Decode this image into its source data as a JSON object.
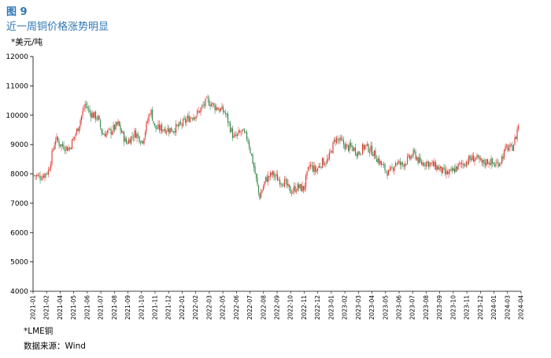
{
  "figure": {
    "label": "图 9",
    "title": "近一周铜价格涨势明显",
    "unit": "*美元/吨",
    "series_note": "*LME铜",
    "source": "数据来源：Wind"
  },
  "colors": {
    "up": "#E0413A",
    "down": "#3B8A4F",
    "axis": "#000000",
    "title": "#2E75B6"
  },
  "chart_data": {
    "type": "line",
    "style": "candlestick",
    "ylim": [
      4000,
      12000
    ],
    "yticks": [
      4000,
      5000,
      6000,
      7000,
      8000,
      9000,
      10000,
      11000,
      12000
    ],
    "grid": false,
    "x_tick_labels": [
      "2021-01",
      "2021-02",
      "2021-04",
      "2021-05",
      "2021-06",
      "2021-07",
      "2021-08",
      "2021-09",
      "2021-10",
      "2021-11",
      "2021-12",
      "2022-01",
      "2022-02",
      "2022-03",
      "2022-05",
      "2022-06",
      "2022-07",
      "2022-08",
      "2022-09",
      "2022-10",
      "2022-11",
      "2022-12",
      "2023-01",
      "2023-02",
      "2023-03",
      "2023-04",
      "2023-05",
      "2023-06",
      "2023-07",
      "2023-08",
      "2023-09",
      "2023-10",
      "2023-11",
      "2023-12",
      "2024-01",
      "2024-03",
      "2024-04"
    ],
    "points": [
      [
        "2021-01-04",
        7950
      ],
      [
        "2021-01-20",
        7900
      ],
      [
        "2021-02-08",
        8100
      ],
      [
        "2021-02-25",
        9200
      ],
      [
        "2021-03-10",
        9000
      ],
      [
        "2021-03-31",
        8850
      ],
      [
        "2021-04-20",
        9500
      ],
      [
        "2021-05-10",
        10400
      ],
      [
        "2021-05-20",
        10100
      ],
      [
        "2021-06-10",
        9900
      ],
      [
        "2021-06-21",
        9350
      ],
      [
        "2021-07-12",
        9450
      ],
      [
        "2021-07-30",
        9700
      ],
      [
        "2021-08-19",
        9050
      ],
      [
        "2021-09-10",
        9400
      ],
      [
        "2021-09-28",
        9100
      ],
      [
        "2021-10-18",
        10200
      ],
      [
        "2021-10-29",
        9550
      ],
      [
        "2021-11-19",
        9550
      ],
      [
        "2021-12-10",
        9500
      ],
      [
        "2021-12-31",
        9650
      ],
      [
        "2022-01-20",
        9900
      ],
      [
        "2022-02-10",
        10050
      ],
      [
        "2022-03-07",
        10500
      ],
      [
        "2022-03-25",
        10300
      ],
      [
        "2022-04-20",
        10100
      ],
      [
        "2022-05-12",
        9200
      ],
      [
        "2022-05-31",
        9450
      ],
      [
        "2022-06-15",
        9200
      ],
      [
        "2022-06-30",
        8250
      ],
      [
        "2022-07-14",
        7200
      ],
      [
        "2022-07-29",
        7800
      ],
      [
        "2022-08-15",
        8000
      ],
      [
        "2022-08-31",
        7800
      ],
      [
        "2022-09-15",
        7700
      ],
      [
        "2022-09-28",
        7400
      ],
      [
        "2022-10-15",
        7550
      ],
      [
        "2022-10-31",
        7500
      ],
      [
        "2022-11-15",
        8300
      ],
      [
        "2022-11-30",
        8100
      ],
      [
        "2022-12-15",
        8400
      ],
      [
        "2022-12-30",
        8450
      ],
      [
        "2023-01-17",
        9200
      ],
      [
        "2023-01-31",
        9100
      ],
      [
        "2023-02-15",
        8900
      ],
      [
        "2023-02-28",
        8900
      ],
      [
        "2023-03-15",
        8700
      ],
      [
        "2023-03-31",
        8950
      ],
      [
        "2023-04-17",
        8800
      ],
      [
        "2023-05-02",
        8500
      ],
      [
        "2023-05-17",
        8200
      ],
      [
        "2023-05-31",
        8000
      ],
      [
        "2023-06-15",
        8400
      ],
      [
        "2023-06-30",
        8300
      ],
      [
        "2023-07-17",
        8500
      ],
      [
        "2023-07-31",
        8700
      ],
      [
        "2023-08-15",
        8350
      ],
      [
        "2023-08-31",
        8400
      ],
      [
        "2023-09-15",
        8300
      ],
      [
        "2023-09-29",
        8200
      ],
      [
        "2023-10-16",
        8000
      ],
      [
        "2023-10-31",
        8050
      ],
      [
        "2023-11-15",
        8250
      ],
      [
        "2023-11-30",
        8350
      ],
      [
        "2023-12-15",
        8500
      ],
      [
        "2023-12-29",
        8550
      ],
      [
        "2024-01-15",
        8350
      ],
      [
        "2024-01-31",
        8450
      ],
      [
        "2024-02-15",
        8300
      ],
      [
        "2024-02-29",
        8450
      ],
      [
        "2024-03-15",
        8900
      ],
      [
        "2024-03-28",
        8850
      ],
      [
        "2024-04-08",
        9300
      ],
      [
        "2024-04-12",
        9650
      ],
      [
        "2024-04-16",
        9800
      ]
    ]
  }
}
